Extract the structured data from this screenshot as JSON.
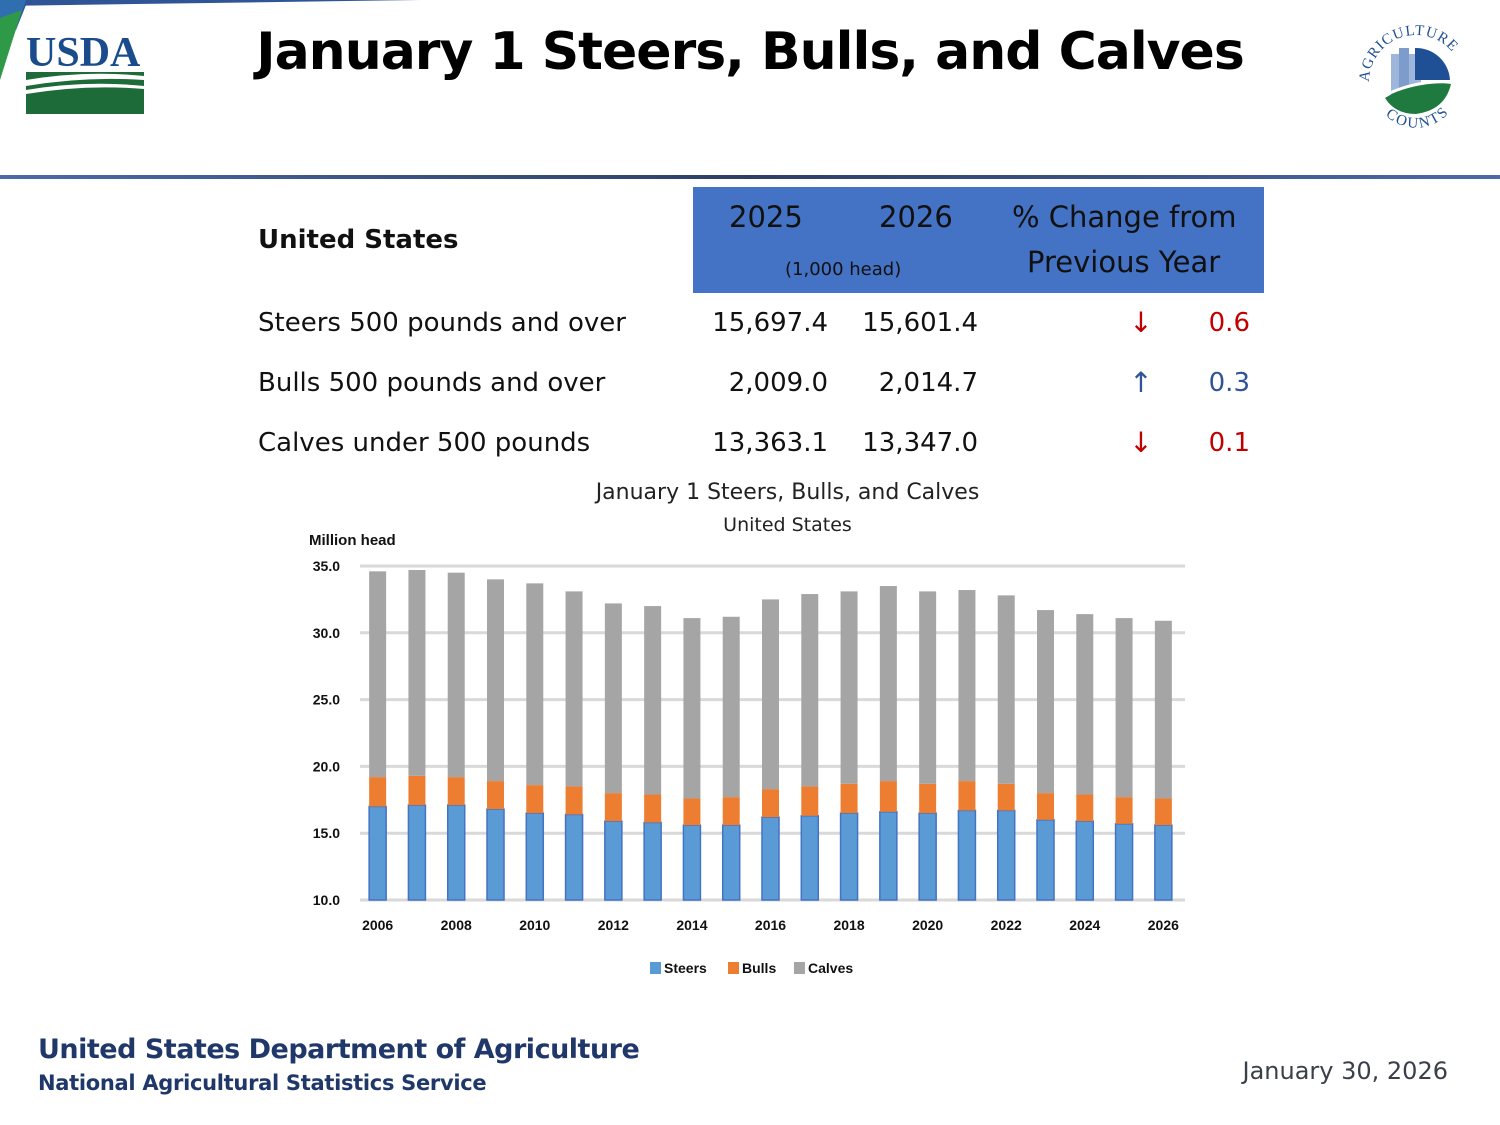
{
  "header": {
    "title": "January 1 Steers, Bulls, and Calves",
    "left_logo": "usda-logo",
    "left_logo_text": "USDA",
    "right_logo": "agriculture-counts-logo",
    "right_logo_text_top": "AGRICULTURE",
    "right_logo_text_bottom": "COUNTS"
  },
  "table": {
    "region": "United States",
    "columns": [
      "2025",
      "2026",
      "% Change from",
      "Previous Year"
    ],
    "unit_note": "(1,000 head)",
    "rows": [
      {
        "label": "Steers 500 pounds and over",
        "y2025": "15,697.4",
        "y2026": "15,601.4",
        "direction": "down",
        "arrow": "↓",
        "change": "0.6"
      },
      {
        "label": "Bulls 500 pounds and over",
        "y2025": "2,009.0",
        "y2026": "2,014.7",
        "direction": "up",
        "arrow": "↑",
        "change": "0.3"
      },
      {
        "label": "Calves under 500 pounds",
        "y2025": "13,363.1",
        "y2026": "13,347.0",
        "direction": "down",
        "arrow": "↓",
        "change": "0.1"
      }
    ],
    "colors": {
      "header_bg": "#4472c4",
      "down": "#c00000",
      "up": "#2f5597"
    }
  },
  "chart_data": {
    "type": "bar",
    "stacked": true,
    "title": "January 1 Steers, Bulls, and Calves",
    "subtitle": "United States",
    "ylabel": "Million head",
    "xlabel": "",
    "ylim": [
      10.0,
      35.0
    ],
    "yticks": [
      "10.0",
      "15.0",
      "20.0",
      "25.0",
      "30.0",
      "35.0"
    ],
    "ytick_values": [
      10,
      15,
      20,
      25,
      30,
      35
    ],
    "grid": true,
    "legend_position": "bottom",
    "categories": [
      "2006",
      "2007",
      "2008",
      "2009",
      "2010",
      "2011",
      "2012",
      "2013",
      "2014",
      "2015",
      "2016",
      "2017",
      "2018",
      "2019",
      "2020",
      "2021",
      "2022",
      "2023",
      "2024",
      "2025",
      "2026"
    ],
    "xtick_labels": [
      "2006",
      "2008",
      "2010",
      "2012",
      "2014",
      "2016",
      "2018",
      "2020",
      "2022",
      "2024",
      "2026"
    ],
    "series": [
      {
        "name": "Steers",
        "color": "#5b9bd5",
        "edge": "#4472c4",
        "values": [
          17.0,
          17.1,
          17.1,
          16.8,
          16.5,
          16.4,
          15.9,
          15.8,
          15.6,
          15.6,
          16.2,
          16.3,
          16.5,
          16.6,
          16.5,
          16.7,
          16.7,
          16.0,
          15.9,
          15.7,
          15.6
        ]
      },
      {
        "name": "Bulls",
        "color": "#ed7d31",
        "values": [
          2.2,
          2.2,
          2.1,
          2.1,
          2.1,
          2.1,
          2.1,
          2.1,
          2.0,
          2.1,
          2.1,
          2.2,
          2.2,
          2.3,
          2.2,
          2.2,
          2.0,
          2.0,
          2.0,
          2.0,
          2.0
        ]
      },
      {
        "name": "Calves",
        "color": "#a5a5a5",
        "values": [
          15.4,
          15.4,
          15.3,
          15.1,
          15.1,
          14.6,
          14.2,
          14.1,
          13.5,
          13.5,
          14.2,
          14.4,
          14.4,
          14.6,
          14.4,
          14.3,
          14.1,
          13.7,
          13.5,
          13.4,
          13.3
        ]
      }
    ]
  },
  "footer": {
    "department": "United States Department of Agriculture",
    "agency": "National Agricultural Statistics Service",
    "date": "January 30, 2026"
  }
}
